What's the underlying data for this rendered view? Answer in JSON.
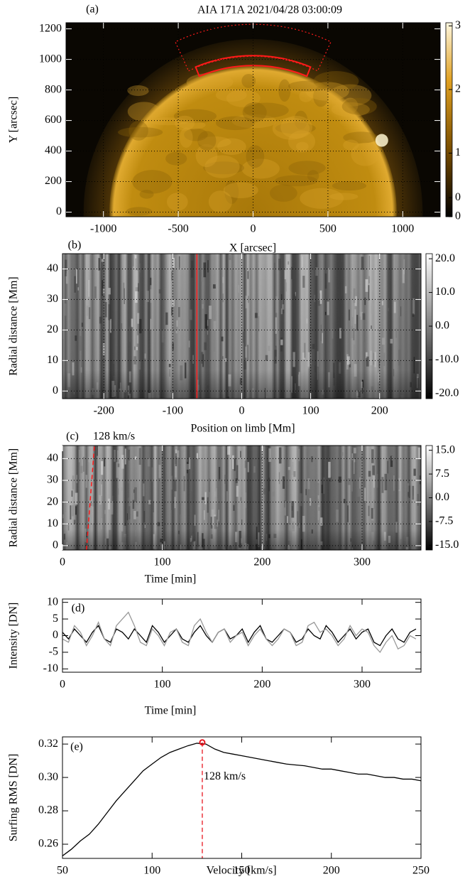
{
  "chart_data": [
    {
      "type": "image",
      "panel_label": "(a)",
      "title": "AIA 171A  2021/04/28 03:00:09",
      "x_label": "X [arcsec]",
      "y_label": "Y [arcsec]",
      "xlim": [
        -1250,
        1250
      ],
      "ylim": [
        -30,
        1240
      ],
      "xticks": [
        -1000,
        -500,
        0,
        500,
        1000
      ],
      "yticks": [
        0,
        200,
        400,
        600,
        800,
        1000,
        1200
      ],
      "grid": true,
      "colorbar": {
        "lim": [
          0,
          3.05
        ],
        "ticks": [
          3,
          2,
          1,
          {
            "value": 0.3,
            "label": "0"
          },
          0
        ]
      }
    },
    {
      "type": "heatmap",
      "panel_label": "(b)",
      "x_label": "Position on limb [Mm]",
      "y_label": "Radial distance [Mm]",
      "xlim": [
        -260,
        260
      ],
      "ylim": [
        -2.5,
        45
      ],
      "xticks": [
        -200,
        -100,
        0,
        100,
        200
      ],
      "yticks": [
        0,
        10,
        20,
        30,
        40
      ],
      "grid": true,
      "marker_x": -65,
      "colorbar": {
        "lim": [
          -21.5,
          21.5
        ],
        "ticks": [
          {
            "value": 20,
            "label": "20.0"
          },
          {
            "value": 10,
            "label": "10.0"
          },
          {
            "value": 0,
            "label": "0.0"
          },
          {
            "value": -10,
            "label": "-10.0"
          },
          {
            "value": -20,
            "label": "-20.0"
          }
        ]
      }
    },
    {
      "type": "heatmap",
      "panel_label": "(c)",
      "x_label": "Time [min]",
      "y_label": "Radial distance [Mm]",
      "xlim": [
        0,
        359
      ],
      "ylim": [
        -2,
        46
      ],
      "xticks": [
        0,
        100,
        200,
        300
      ],
      "yticks": [
        0,
        10,
        20,
        30,
        40
      ],
      "grid": true,
      "speed_line": {
        "label": "128 km/s",
        "x": [
          24,
          32
        ],
        "y": [
          -2,
          46
        ]
      },
      "colorbar": {
        "lim": [
          -16.5,
          16.5
        ],
        "ticks": [
          {
            "value": 15,
            "label": "15.0"
          },
          {
            "value": 7.5,
            "label": "7.5"
          },
          {
            "value": 0,
            "label": "0.0"
          },
          {
            "value": -7.5,
            "label": "-7.5"
          },
          {
            "value": -15,
            "label": "-15.0"
          }
        ]
      }
    },
    {
      "type": "line",
      "panel_label": "(d)",
      "x_label": "Time [min]",
      "y_label": "Intensity [DN]",
      "xlim": [
        0,
        359
      ],
      "ylim": [
        -11,
        11
      ],
      "xticks": [
        0,
        100,
        200,
        300
      ],
      "yticks": [
        -10,
        -5,
        0,
        5,
        10
      ],
      "grid": false,
      "x": [
        0,
        6,
        12,
        18,
        24,
        30,
        36,
        42,
        48,
        54,
        60,
        66,
        72,
        78,
        84,
        90,
        96,
        102,
        108,
        114,
        120,
        126,
        132,
        138,
        144,
        150,
        156,
        162,
        168,
        174,
        180,
        186,
        192,
        198,
        204,
        210,
        216,
        222,
        228,
        234,
        240,
        246,
        252,
        258,
        264,
        270,
        276,
        282,
        288,
        294,
        300,
        306,
        312,
        318,
        324,
        330,
        336,
        342,
        348,
        354
      ],
      "series": [
        {
          "color": "#000000",
          "values": [
            1,
            -1,
            2,
            0,
            -2,
            1,
            3,
            -1,
            -2,
            2,
            1,
            -1,
            2,
            0,
            -2,
            3,
            1,
            -2,
            0,
            2,
            -1,
            -2,
            1,
            3,
            0,
            -2,
            1,
            2,
            -1,
            0,
            2,
            -2,
            1,
            3,
            -1,
            -2,
            0,
            2,
            1,
            -2,
            -1,
            2,
            0,
            -1,
            3,
            1,
            -2,
            0,
            2,
            -1,
            1,
            2,
            -2,
            -3,
            0,
            2,
            -1,
            -2,
            1,
            2
          ]
        },
        {
          "color": "#999999",
          "values": [
            -1,
            -2,
            3,
            1,
            -3,
            0,
            4,
            -1,
            -3,
            3,
            5,
            7,
            3,
            -2,
            -3,
            2,
            0,
            -3,
            1,
            2,
            -2,
            -3,
            3,
            5,
            1,
            -2,
            1,
            2,
            -2,
            0,
            1,
            -3,
            0,
            2,
            -1,
            -3,
            -1,
            2,
            1,
            -3,
            -2,
            3,
            4,
            1,
            2,
            0,
            -3,
            -1,
            3,
            0,
            2,
            1,
            -3,
            -5,
            -2,
            0,
            -4,
            -3,
            0,
            -1
          ]
        }
      ]
    },
    {
      "type": "line",
      "panel_label": "(e)",
      "x_label": "Velocity [km/s]",
      "y_label": "Surfing RMS [DN]",
      "xlim": [
        50,
        250
      ],
      "ylim": [
        0.2515,
        0.3243
      ],
      "xticks": [
        50,
        100,
        150,
        200,
        250
      ],
      "yticks": [
        0.26,
        0.28,
        {
          "value": 0.3,
          "label": "0.30"
        },
        0.32
      ],
      "grid": false,
      "x": [
        50,
        55,
        60,
        65,
        70,
        75,
        80,
        85,
        90,
        95,
        100,
        105,
        110,
        115,
        120,
        125,
        130,
        135,
        140,
        145,
        150,
        155,
        160,
        165,
        170,
        175,
        180,
        185,
        190,
        195,
        200,
        205,
        210,
        215,
        220,
        225,
        230,
        235,
        240,
        245,
        250
      ],
      "series": [
        {
          "color": "#000000",
          "values": [
            0.253,
            0.257,
            0.262,
            0.266,
            0.272,
            0.279,
            0.286,
            0.292,
            0.298,
            0.304,
            0.308,
            0.312,
            0.315,
            0.317,
            0.319,
            0.3205,
            0.32,
            0.317,
            0.315,
            0.314,
            0.313,
            0.312,
            0.311,
            0.31,
            0.309,
            0.308,
            0.3075,
            0.307,
            0.306,
            0.305,
            0.305,
            0.304,
            0.303,
            0.302,
            0.302,
            0.301,
            0.3,
            0.3,
            0.299,
            0.299,
            0.298
          ]
        }
      ],
      "peak": {
        "x": 128,
        "y": 0.321,
        "label": "128 km/s",
        "color": "#e8141e"
      }
    }
  ]
}
